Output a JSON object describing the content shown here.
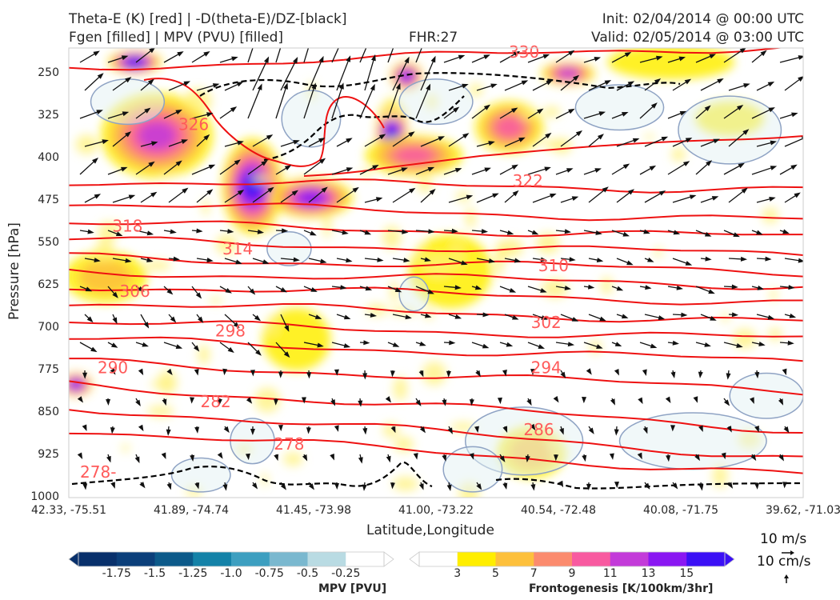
{
  "titles": {
    "left_line1": "Theta-E (K) [red] | -D(theta-E)/DZ-[black]",
    "left_line2": "Fgen [filled] | MPV (PVU) [filled]",
    "center": "FHR:27",
    "right_line1": "Init: 02/04/2014 @ 00:00 UTC",
    "right_line2": "Valid: 02/05/2014 @ 03:00 UTC"
  },
  "axes": {
    "ylabel": "Pressure [hPa]",
    "xlabel": "Latitude,Longitude"
  },
  "chart_data": {
    "type": "contour-cross-section",
    "y_ticks": [
      "250",
      "325",
      "400",
      "475",
      "550",
      "625",
      "700",
      "775",
      "850",
      "925",
      "1000"
    ],
    "y_values": [
      250,
      325,
      400,
      475,
      550,
      625,
      700,
      775,
      850,
      925,
      1000
    ],
    "ylim": [
      1000,
      205
    ],
    "x_ticks": [
      "42.33, -75.51",
      "41.89, -74.74",
      "41.45, -73.98",
      "41.00, -73.22",
      "40.54, -72.48",
      "40.08, -71.75",
      "39.62, -71.03"
    ],
    "theta_e_labels": [
      {
        "label": "330",
        "x": 0.62,
        "p": 212
      },
      {
        "label": "326",
        "x": 0.17,
        "p": 340
      },
      {
        "label": "322",
        "x": 0.625,
        "p": 440
      },
      {
        "label": "318",
        "x": 0.08,
        "p": 520
      },
      {
        "label": "314",
        "x": 0.23,
        "p": 560
      },
      {
        "label": "310",
        "x": 0.66,
        "p": 590
      },
      {
        "label": "306",
        "x": 0.09,
        "p": 635
      },
      {
        "label": "302",
        "x": 0.65,
        "p": 690
      },
      {
        "label": "298",
        "x": 0.22,
        "p": 705
      },
      {
        "label": "294",
        "x": 0.65,
        "p": 770
      },
      {
        "label": "290",
        "x": 0.06,
        "p": 770
      },
      {
        "label": "286",
        "x": 0.64,
        "p": 880
      },
      {
        "label": "282",
        "x": 0.2,
        "p": 830
      },
      {
        "label": "278",
        "x": 0.3,
        "p": 905
      },
      {
        "label": "278-",
        "x": 0.04,
        "p": 955
      }
    ],
    "theta_e_lines": [
      {
        "p_start": 240,
        "p_end": 200
      },
      {
        "p_start": 440,
        "p_end": 455
      },
      {
        "p_start": 480,
        "p_end": 510
      },
      {
        "p_start": 515,
        "p_end": 540
      },
      {
        "p_start": 545,
        "p_end": 570
      },
      {
        "p_start": 575,
        "p_end": 600
      },
      {
        "p_start": 600,
        "p_end": 625
      },
      {
        "p_start": 625,
        "p_end": 655
      },
      {
        "p_start": 655,
        "p_end": 690
      },
      {
        "p_start": 690,
        "p_end": 720
      },
      {
        "p_start": 720,
        "p_end": 760
      },
      {
        "p_start": 760,
        "p_end": 810
      },
      {
        "p_start": 800,
        "p_end": 880
      },
      {
        "p_start": 840,
        "p_end": 930
      },
      {
        "p_start": 880,
        "p_end": 960
      }
    ],
    "fgen_blobs": [
      {
        "x": 0.12,
        "p": 360,
        "rx": 0.07,
        "rp": 70,
        "level": 11
      },
      {
        "x": 0.25,
        "p": 450,
        "rx": 0.035,
        "rp": 80,
        "level": 15
      },
      {
        "x": 0.33,
        "p": 470,
        "rx": 0.05,
        "rp": 30,
        "level": 13
      },
      {
        "x": 0.44,
        "p": 360,
        "rx": 0.015,
        "rp": 60,
        "level": 15
      },
      {
        "x": 0.47,
        "p": 395,
        "rx": 0.06,
        "rp": 30,
        "level": 9
      },
      {
        "x": 0.6,
        "p": 345,
        "rx": 0.04,
        "rp": 40,
        "level": 9
      },
      {
        "x": 0.09,
        "p": 230,
        "rx": 0.03,
        "rp": 15,
        "level": 15
      },
      {
        "x": 0.68,
        "p": 250,
        "rx": 0.03,
        "rp": 15,
        "level": 11
      },
      {
        "x": 0.46,
        "p": 255,
        "rx": 0.015,
        "rp": 20,
        "level": 13
      },
      {
        "x": 0.01,
        "p": 800,
        "rx": 0.015,
        "rp": 15,
        "level": 13
      },
      {
        "x": 0.05,
        "p": 610,
        "rx": 0.05,
        "rp": 40,
        "level": 5
      },
      {
        "x": 0.52,
        "p": 600,
        "rx": 0.05,
        "rp": 60,
        "level": 3
      },
      {
        "x": 0.31,
        "p": 720,
        "rx": 0.04,
        "rp": 50,
        "level": 3
      },
      {
        "x": 0.63,
        "p": 920,
        "rx": 0.04,
        "rp": 40,
        "level": 5
      },
      {
        "x": 0.82,
        "p": 230,
        "rx": 0.08,
        "rp": 25,
        "level": 3
      },
      {
        "x": 0.9,
        "p": 330,
        "rx": 0.04,
        "rp": 25,
        "level": 3
      }
    ],
    "mpv_colorbar": {
      "label": "MPV [PVU]",
      "ticks": [
        "-1.75",
        "-1.5",
        "-1.25",
        "-1.0",
        "-0.75",
        "-0.5",
        "-0.25"
      ],
      "colors": [
        "#08306b",
        "#0b3f7a",
        "#0c5a8a",
        "#1482a8",
        "#3d9fc0",
        "#7ab8cf",
        "#b9dbe3",
        "#ffffff"
      ]
    },
    "fgen_colorbar": {
      "label": "Frontogenesis [K/100km/3hr]",
      "ticks": [
        "3",
        "5",
        "7",
        "9",
        "11",
        "13",
        "15"
      ],
      "colors": [
        "#ffffff",
        "#ffee00",
        "#fdc03c",
        "#fb8b6e",
        "#f85aa0",
        "#c33bd9",
        "#8a17f2",
        "#3b10f5"
      ]
    }
  },
  "wind_key": {
    "horizontal": "10 m/s",
    "vertical": "10 cm/s"
  },
  "colors": {
    "theta_e": "#ee1111",
    "theta_e_label": "#ff5a5a",
    "stability": "#000000",
    "mpv_contour": "#8fa3c4",
    "arrows": "#111111"
  }
}
